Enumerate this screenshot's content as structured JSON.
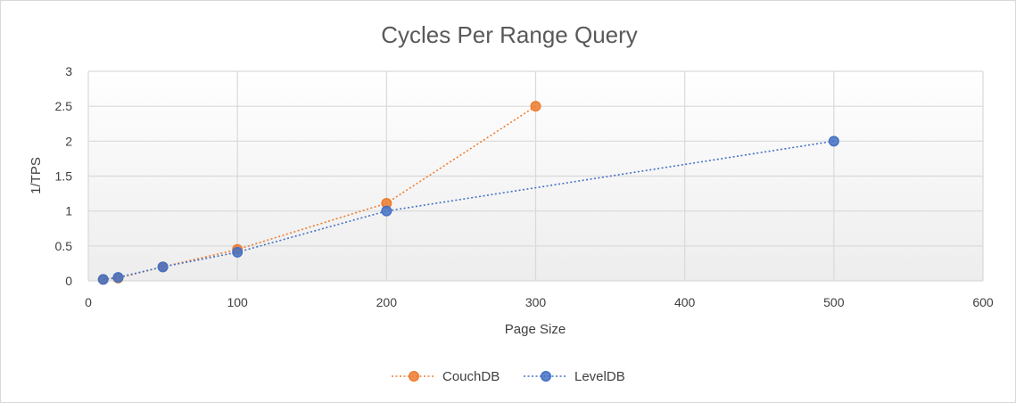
{
  "chart_data": {
    "type": "scatter",
    "title": "Cycles Per Range Query",
    "xlabel": "Page Size",
    "ylabel": "1/TPS",
    "xlim": [
      0,
      600
    ],
    "ylim": [
      0,
      3
    ],
    "x_ticks": [
      "0",
      "100",
      "200",
      "300",
      "400",
      "500",
      "600"
    ],
    "y_ticks": [
      "0",
      "0.5",
      "1",
      "1.5",
      "2",
      "2.5",
      "3"
    ],
    "grid": true,
    "legend_position": "bottom",
    "series": [
      {
        "name": "CouchDB",
        "color": "#ED7D31",
        "line_style": "dotted",
        "x": [
          10,
          20,
          50,
          100,
          200,
          300
        ],
        "y": [
          0.02,
          0.04,
          0.2,
          0.45,
          1.11,
          2.5
        ]
      },
      {
        "name": "LevelDB",
        "color": "#4472C4",
        "line_style": "dotted",
        "x": [
          10,
          20,
          50,
          100,
          200,
          500
        ],
        "y": [
          0.02,
          0.05,
          0.2,
          0.41,
          1.0,
          2.0
        ]
      }
    ]
  }
}
